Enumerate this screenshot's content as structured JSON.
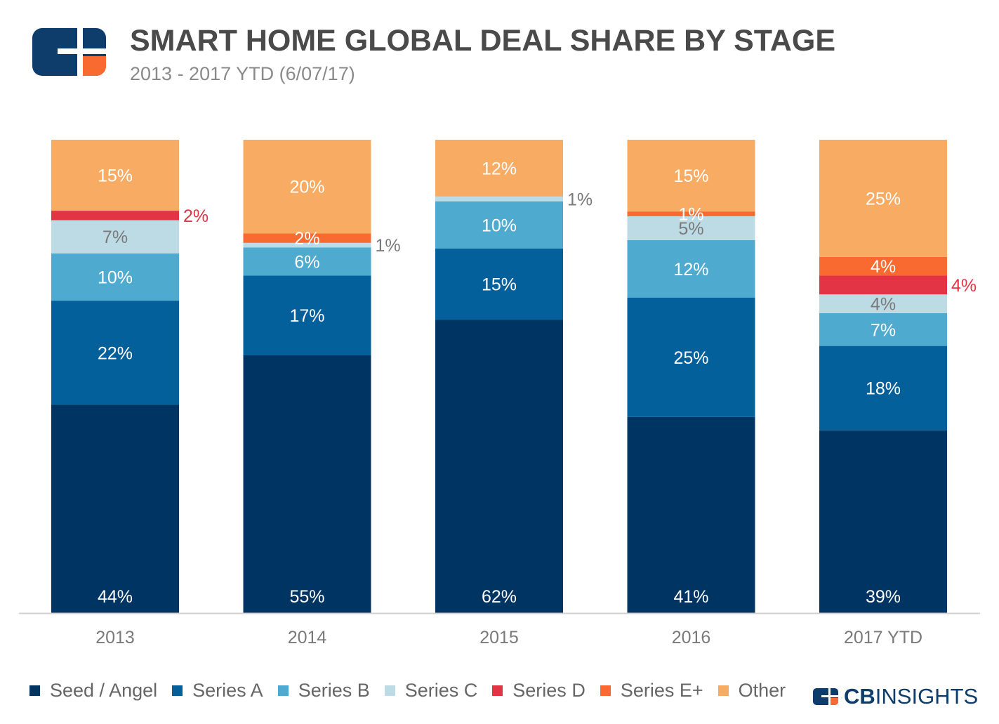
{
  "header": {
    "title": "SMART HOME GLOBAL DEAL SHARE BY STAGE",
    "subtitle": "2013 - 2017 YTD (6/07/17)"
  },
  "brand": {
    "name_bold": "CB",
    "name_regular": "INSIGHTS"
  },
  "colors": {
    "Seed / Angel": "#003462",
    "Series A": "#03609a",
    "Series B": "#4faad0",
    "Series C": "#bcdbe5",
    "Series D": "#e23444",
    "Series E+": "#f96a31",
    "Other": "#f8ab63"
  },
  "chart_data": {
    "type": "bar",
    "stacked": true,
    "title": "SMART HOME GLOBAL DEAL SHARE BY STAGE",
    "subtitle": "2013 - 2017 YTD (6/07/17)",
    "xlabel": "",
    "ylabel": "",
    "ylim": [
      0,
      100
    ],
    "grid": false,
    "legend_position": "bottom",
    "categories": [
      "2013",
      "2014",
      "2015",
      "2016",
      "2017 YTD"
    ],
    "series": [
      {
        "name": "Seed / Angel",
        "values": [
          44,
          55,
          62,
          41,
          39
        ],
        "labels": [
          "44%",
          "55%",
          "62%",
          "41%",
          "39%"
        ]
      },
      {
        "name": "Series A",
        "values": [
          22,
          17,
          15,
          25,
          18
        ],
        "labels": [
          "22%",
          "17%",
          "15%",
          "25%",
          "18%"
        ]
      },
      {
        "name": "Series B",
        "values": [
          10,
          6,
          10,
          12,
          7
        ],
        "labels": [
          "10%",
          "6%",
          "10%",
          "12%",
          "7%"
        ]
      },
      {
        "name": "Series C",
        "values": [
          7,
          1,
          1,
          5,
          4
        ],
        "labels": [
          "7%",
          "1%",
          "1%",
          "5%",
          "4%"
        ]
      },
      {
        "name": "Series D",
        "values": [
          2,
          0,
          0,
          0,
          4
        ],
        "labels": [
          "2%",
          "",
          "",
          "",
          "4%"
        ]
      },
      {
        "name": "Series E+",
        "values": [
          0,
          2,
          0,
          1,
          4
        ],
        "labels": [
          "",
          "2%",
          "",
          "1%",
          "4%"
        ]
      },
      {
        "name": "Other",
        "values": [
          15,
          20,
          12,
          15,
          25
        ],
        "labels": [
          "15%",
          "20%",
          "12%",
          "15%",
          "25%"
        ]
      }
    ]
  }
}
